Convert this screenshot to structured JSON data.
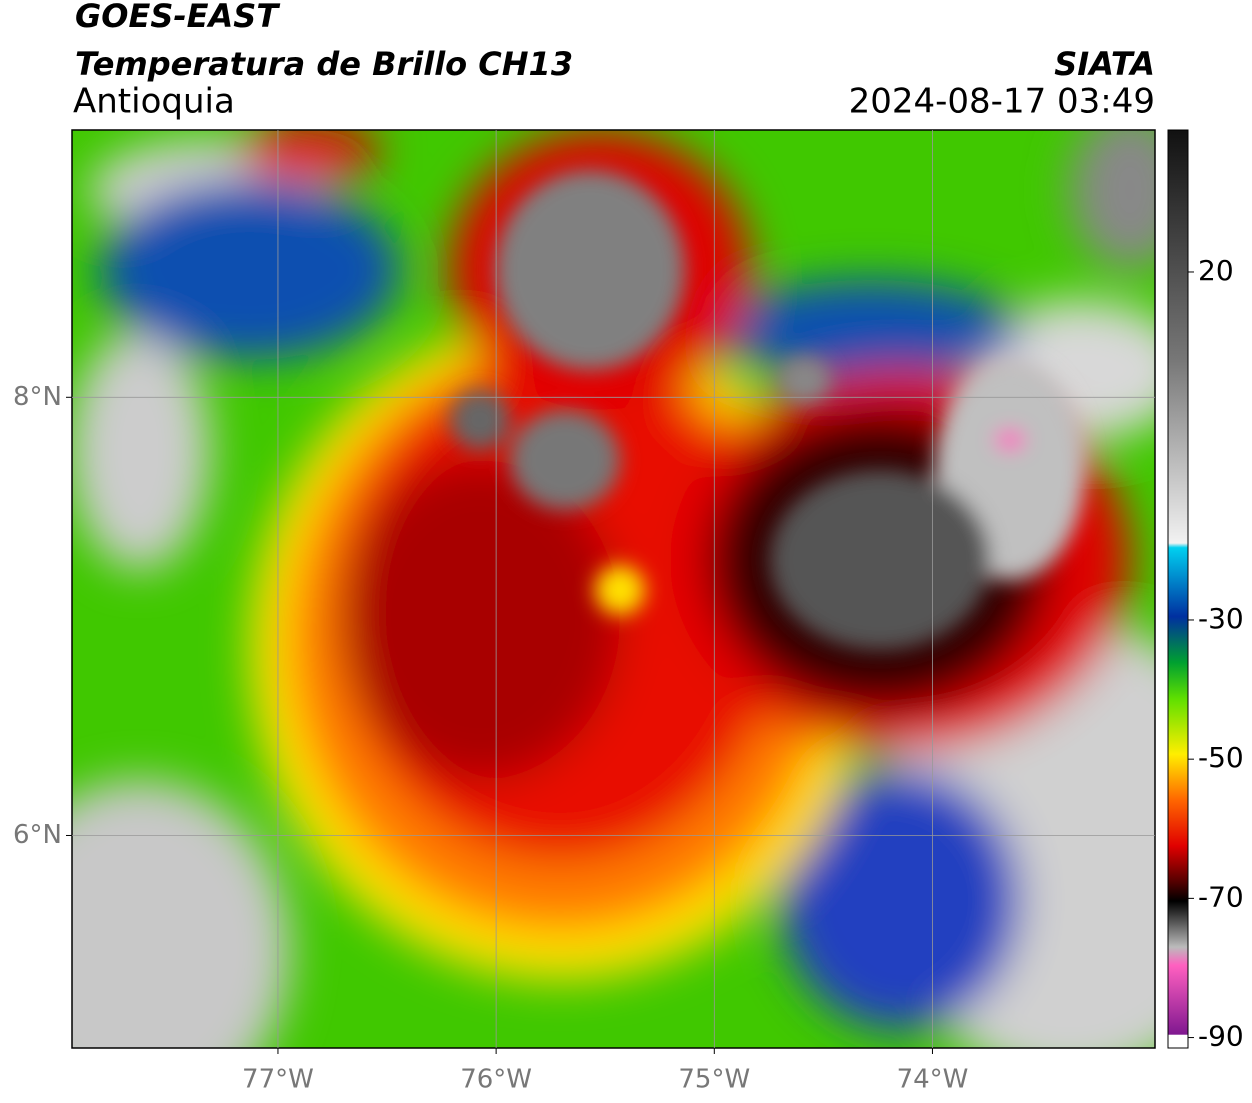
{
  "header": {
    "title": "GOES-EAST",
    "subtitle": "Temperatura de Brillo CH13",
    "region": "Antioquia",
    "source": "SIATA",
    "timestamp": "2024-08-17 03:49"
  },
  "map": {
    "xlim": [
      -77.944,
      -72.98
    ],
    "ylim": [
      5.03,
      9.22
    ],
    "xticks": [
      {
        "value": -77,
        "label": "77°W"
      },
      {
        "value": -76,
        "label": "76°W"
      },
      {
        "value": -75,
        "label": "75°W"
      },
      {
        "value": -74,
        "label": "74°W"
      }
    ],
    "yticks": [
      {
        "value": 8,
        "label": "8°N"
      },
      {
        "value": 6,
        "label": "6°N"
      }
    ],
    "grid": true
  },
  "colorbar": {
    "lim": [
      -91.5,
      40.4
    ],
    "ticks": [
      20,
      -30,
      -50,
      -70,
      -90
    ]
  }
}
